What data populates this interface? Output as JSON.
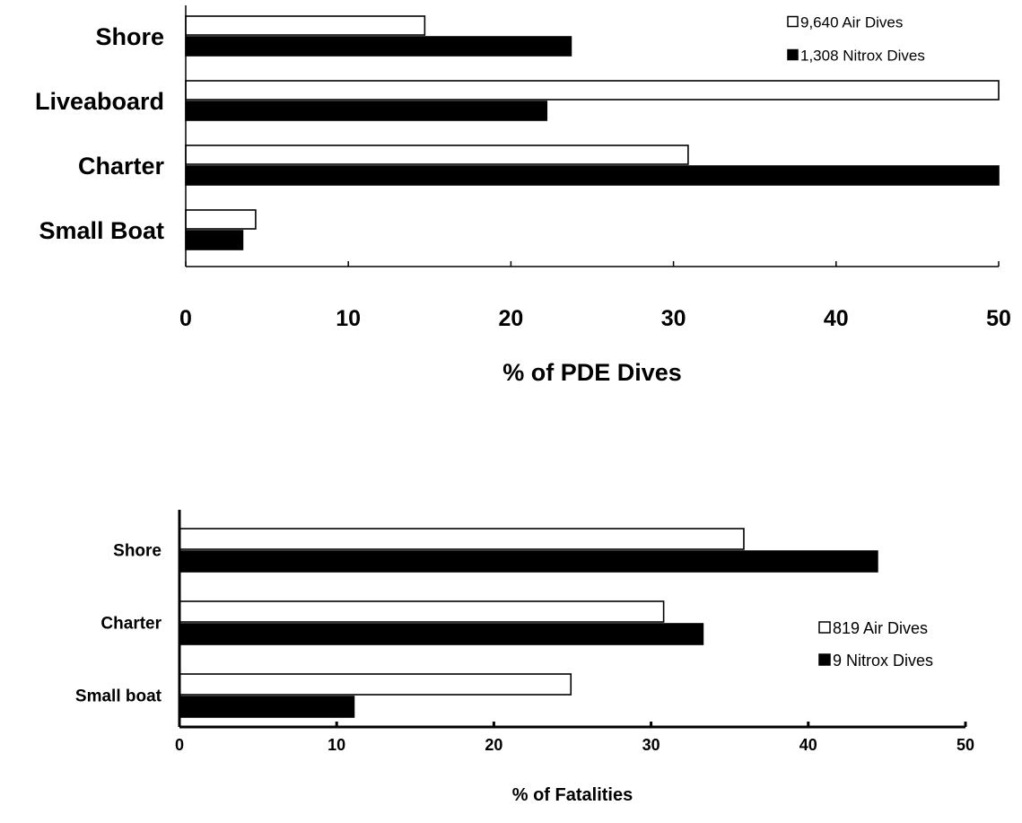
{
  "chart_data": [
    {
      "type": "bar",
      "orientation": "horizontal",
      "categories": [
        "Shore",
        "Liveaboard",
        "Charter",
        "Small Boat"
      ],
      "series": [
        {
          "name": "9,640 Air Dives",
          "values": [
            14.7,
            50.0,
            30.9,
            4.3
          ],
          "color": "#ffffff"
        },
        {
          "name": "1,308 Nitrox Dives",
          "values": [
            23.7,
            22.2,
            50.0,
            3.5
          ],
          "color": "#000000"
        }
      ],
      "title": "",
      "xlabel": "% of PDE Dives",
      "ylabel": "",
      "xlim": [
        0,
        50
      ],
      "xticks": [
        "0",
        "10",
        "20",
        "30",
        "40",
        "50"
      ],
      "grid": false,
      "legend": "top-right"
    },
    {
      "type": "bar",
      "orientation": "horizontal",
      "categories": [
        "Shore",
        "Charter",
        "Small boat"
      ],
      "series": [
        {
          "name": "819 Air Dives",
          "values": [
            35.9,
            30.8,
            24.9
          ],
          "color": "#ffffff"
        },
        {
          "name": "9 Nitrox Dives",
          "values": [
            44.4,
            33.3,
            11.1
          ],
          "color": "#000000"
        }
      ],
      "title": "",
      "xlabel": "% of Fatalities",
      "ylabel": "",
      "xlim": [
        0,
        50
      ],
      "xticks": [
        "0",
        "10",
        "20",
        "30",
        "40",
        "50"
      ],
      "grid": false,
      "legend": "right"
    }
  ]
}
